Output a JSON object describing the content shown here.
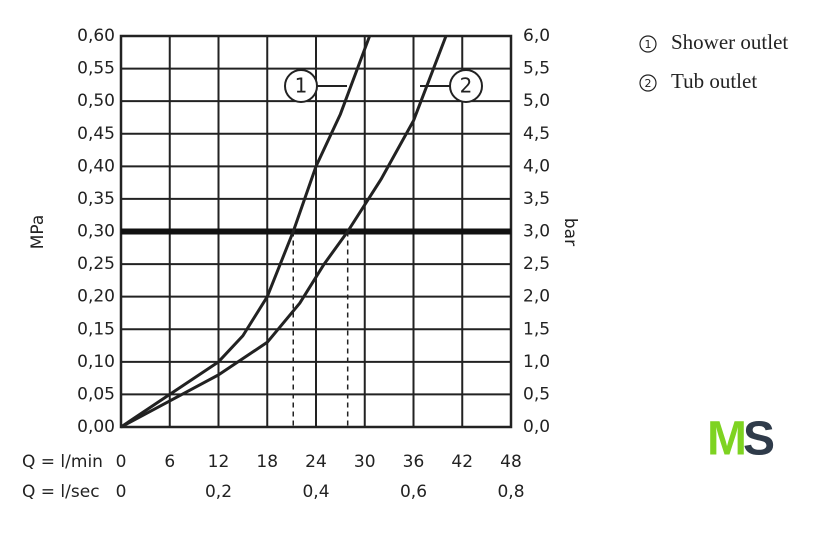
{
  "chart_data": {
    "type": "line",
    "xlabel": "Q = l/min",
    "x2label": "Q = l/sec",
    "ylabel": "MPa",
    "y2label": "bar",
    "xlim": [
      0,
      48
    ],
    "xticks": [
      0,
      6,
      12,
      18,
      24,
      30,
      36,
      42,
      48
    ],
    "x2lim": [
      0,
      0.8
    ],
    "x2ticks": [
      0,
      {
        "value": 0.2,
        "label": "0,2"
      },
      {
        "value": 0.4,
        "label": "0,4"
      },
      {
        "value": 0.6,
        "label": "0,6"
      },
      {
        "value": 0.8,
        "label": "0,8"
      }
    ],
    "ylim": [
      0,
      0.6
    ],
    "yticks": [
      {
        "value": 0,
        "label": "0,00"
      },
      {
        "value": 0.05,
        "label": "0,05"
      },
      {
        "value": 0.1,
        "label": "0,10"
      },
      {
        "value": 0.15,
        "label": "0,15"
      },
      {
        "value": 0.2,
        "label": "0,20"
      },
      {
        "value": 0.25,
        "label": "0,25"
      },
      {
        "value": 0.3,
        "label": "0,30"
      },
      {
        "value": 0.35,
        "label": "0,35"
      },
      {
        "value": 0.4,
        "label": "0,40"
      },
      {
        "value": 0.45,
        "label": "0,45"
      },
      {
        "value": 0.5,
        "label": "0,50"
      },
      {
        "value": 0.55,
        "label": "0,55"
      },
      {
        "value": 0.6,
        "label": "0,60"
      }
    ],
    "y2lim": [
      0,
      6
    ],
    "y2ticks": [
      {
        "value": 0,
        "label": "0,0"
      },
      {
        "value": 0.5,
        "label": "0,5"
      },
      {
        "value": 1,
        "label": "1,0"
      },
      {
        "value": 1.5,
        "label": "1,5"
      },
      {
        "value": 2,
        "label": "2,0"
      },
      {
        "value": 2.5,
        "label": "2,5"
      },
      {
        "value": 3,
        "label": "3,0"
      },
      {
        "value": 3.5,
        "label": "3,5"
      },
      {
        "value": 4,
        "label": "4,0"
      },
      {
        "value": 4.5,
        "label": "4,5"
      },
      {
        "value": 5,
        "label": "5,0"
      },
      {
        "value": 5.5,
        "label": "5,5"
      },
      {
        "value": 6,
        "label": "6,0"
      }
    ],
    "grid": true,
    "reference_y": 0.3,
    "series": [
      {
        "name": "Shower outlet",
        "marker": "1",
        "color": "#222222",
        "x": [
          0,
          6,
          12,
          15,
          18,
          21.2,
          24,
          27,
          30,
          30.6
        ],
        "values": [
          0,
          0.05,
          0.1,
          0.14,
          0.2,
          0.3,
          0.4,
          0.48,
          0.58,
          0.6
        ],
        "drop_x": 21.2
      },
      {
        "name": "Tub outlet",
        "marker": "2",
        "color": "#222222",
        "x": [
          0,
          6,
          12,
          18,
          22,
          25,
          27.9,
          32,
          36,
          40
        ],
        "values": [
          0,
          0.04,
          0.08,
          0.13,
          0.19,
          0.25,
          0.3,
          0.38,
          0.47,
          0.6
        ],
        "drop_x": 27.9
      }
    ],
    "logo": [
      "M",
      "S"
    ]
  }
}
